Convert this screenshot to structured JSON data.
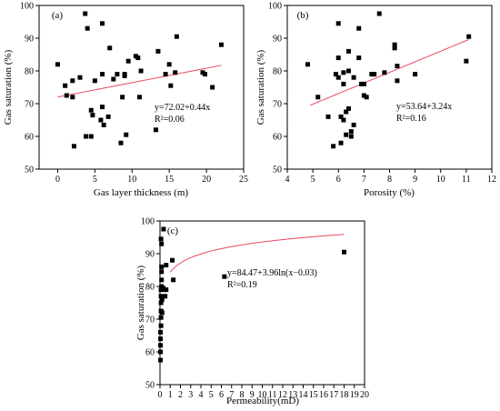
{
  "fit_color": "#e84a5f",
  "chart_data": [
    {
      "type": "scatter",
      "panel_label": "(a)",
      "xlabel": "Gas layer thickness (m)",
      "ylabel": "Gas saturation (%)",
      "xlim": [
        -2.5,
        25
      ],
      "ylim": [
        50,
        100
      ],
      "xticks": [
        0,
        5,
        10,
        15,
        20,
        25
      ],
      "yticks": [
        50,
        60,
        70,
        80,
        90,
        100
      ],
      "x_tick_labels": [
        "0",
        "5",
        "10",
        "15",
        "20",
        "25"
      ],
      "y_tick_labels": [
        "50",
        "60",
        "70",
        "80",
        "90",
        "100"
      ],
      "points": [
        {
          "x": 0.0,
          "y": 82.0
        },
        {
          "x": 1.0,
          "y": 75.5
        },
        {
          "x": 1.2,
          "y": 72.5
        },
        {
          "x": 2.0,
          "y": 72.0
        },
        {
          "x": 2.0,
          "y": 77.0
        },
        {
          "x": 2.2,
          "y": 57.0
        },
        {
          "x": 3.0,
          "y": 78.0
        },
        {
          "x": 3.7,
          "y": 97.5
        },
        {
          "x": 3.8,
          "y": 60.0
        },
        {
          "x": 4.0,
          "y": 93.0
        },
        {
          "x": 4.5,
          "y": 60.0
        },
        {
          "x": 4.5,
          "y": 68.0
        },
        {
          "x": 4.7,
          "y": 66.5
        },
        {
          "x": 5.0,
          "y": 77.0
        },
        {
          "x": 5.8,
          "y": 65.0
        },
        {
          "x": 6.0,
          "y": 94.5
        },
        {
          "x": 6.0,
          "y": 79.0
        },
        {
          "x": 6.0,
          "y": 69.0
        },
        {
          "x": 6.2,
          "y": 63.5
        },
        {
          "x": 6.8,
          "y": 66.0
        },
        {
          "x": 7.0,
          "y": 87.0
        },
        {
          "x": 7.5,
          "y": 77.5
        },
        {
          "x": 8.0,
          "y": 79.0
        },
        {
          "x": 8.5,
          "y": 58.0
        },
        {
          "x": 8.7,
          "y": 72.0
        },
        {
          "x": 9.0,
          "y": 79.0
        },
        {
          "x": 9.0,
          "y": 78.5
        },
        {
          "x": 9.2,
          "y": 60.5
        },
        {
          "x": 9.5,
          "y": 83.0
        },
        {
          "x": 10.5,
          "y": 84.5
        },
        {
          "x": 10.8,
          "y": 84.0
        },
        {
          "x": 11.0,
          "y": 72.0
        },
        {
          "x": 11.2,
          "y": 80.0
        },
        {
          "x": 13.2,
          "y": 62.0
        },
        {
          "x": 13.5,
          "y": 86.0
        },
        {
          "x": 14.5,
          "y": 79.0
        },
        {
          "x": 15.0,
          "y": 82.0
        },
        {
          "x": 15.2,
          "y": 75.5
        },
        {
          "x": 15.8,
          "y": 79.5
        },
        {
          "x": 16.0,
          "y": 90.5
        },
        {
          "x": 19.5,
          "y": 79.5
        },
        {
          "x": 19.8,
          "y": 79.0
        },
        {
          "x": 20.8,
          "y": 75.0
        },
        {
          "x": 22.0,
          "y": 88.0
        }
      ],
      "fit": {
        "kind": "linear",
        "intercept": 72.02,
        "slope": 0.44,
        "x_range": [
          0,
          22
        ]
      },
      "equation_text": "y=72.02+0.44x",
      "r2_text": "R²=0.06"
    },
    {
      "type": "scatter",
      "panel_label": "(b)",
      "xlabel": "Porosity (%)",
      "ylabel": "Gas saturation (%)",
      "xlim": [
        4,
        12
      ],
      "ylim": [
        50,
        100
      ],
      "xticks": [
        4,
        5,
        6,
        7,
        8,
        9,
        10,
        11,
        12
      ],
      "yticks": [
        50,
        60,
        70,
        80,
        90,
        100
      ],
      "x_tick_labels": [
        "4",
        "5",
        "6",
        "7",
        "8",
        "9",
        "10",
        "11",
        "12"
      ],
      "y_tick_labels": [
        "50",
        "60",
        "70",
        "80",
        "90",
        "100"
      ],
      "points": [
        {
          "x": 4.8,
          "y": 82.0
        },
        {
          "x": 5.2,
          "y": 72.0
        },
        {
          "x": 5.6,
          "y": 66.0
        },
        {
          "x": 5.8,
          "y": 57.0
        },
        {
          "x": 5.9,
          "y": 79.0
        },
        {
          "x": 6.0,
          "y": 94.5
        },
        {
          "x": 6.0,
          "y": 84.0
        },
        {
          "x": 6.0,
          "y": 78.0
        },
        {
          "x": 6.1,
          "y": 66.0
        },
        {
          "x": 6.1,
          "y": 58.0
        },
        {
          "x": 6.2,
          "y": 79.5
        },
        {
          "x": 6.2,
          "y": 76.0
        },
        {
          "x": 6.2,
          "y": 65.0
        },
        {
          "x": 6.3,
          "y": 60.5
        },
        {
          "x": 6.3,
          "y": 67.5
        },
        {
          "x": 6.4,
          "y": 86.0
        },
        {
          "x": 6.4,
          "y": 80.0
        },
        {
          "x": 6.4,
          "y": 68.5
        },
        {
          "x": 6.5,
          "y": 60.0
        },
        {
          "x": 6.5,
          "y": 61.5
        },
        {
          "x": 6.6,
          "y": 78.0
        },
        {
          "x": 6.6,
          "y": 63.5
        },
        {
          "x": 6.8,
          "y": 93.0
        },
        {
          "x": 6.8,
          "y": 84.0
        },
        {
          "x": 6.9,
          "y": 76.0
        },
        {
          "x": 7.0,
          "y": 76.0
        },
        {
          "x": 7.0,
          "y": 72.5
        },
        {
          "x": 7.1,
          "y": 72.0
        },
        {
          "x": 7.3,
          "y": 79.0
        },
        {
          "x": 7.4,
          "y": 79.0
        },
        {
          "x": 7.6,
          "y": 97.5
        },
        {
          "x": 7.8,
          "y": 79.5
        },
        {
          "x": 8.2,
          "y": 88.0
        },
        {
          "x": 8.2,
          "y": 87.0
        },
        {
          "x": 8.3,
          "y": 81.5
        },
        {
          "x": 8.3,
          "y": 77.0
        },
        {
          "x": 9.0,
          "y": 79.0
        },
        {
          "x": 11.0,
          "y": 83.0
        },
        {
          "x": 11.1,
          "y": 90.5
        }
      ],
      "fit": {
        "kind": "linear",
        "intercept": 53.64,
        "slope": 3.24,
        "x_range": [
          4.9,
          11.1
        ]
      },
      "equation_text": "y=53.64+3.24x",
      "r2_text": "R²=0.16"
    },
    {
      "type": "scatter",
      "panel_label": "(c)",
      "xlabel": "Permeability(mD)",
      "ylabel": "Gas saturation (%)",
      "xlim": [
        0,
        20
      ],
      "ylim": [
        50,
        100
      ],
      "xticks": [
        0,
        1,
        2,
        3,
        4,
        5,
        6,
        7,
        8,
        9,
        10,
        11,
        12,
        13,
        14,
        15,
        16,
        17,
        18,
        19,
        20
      ],
      "yticks": [
        50,
        60,
        70,
        80,
        90,
        100
      ],
      "x_tick_labels": [
        "0",
        "1",
        "2",
        "3",
        "4",
        "5",
        "6",
        "7",
        "8",
        "9",
        "10",
        "11",
        "12",
        "13",
        "14",
        "15",
        "16",
        "17",
        "18",
        "19",
        "20"
      ],
      "y_tick_labels": [
        "50",
        "60",
        "70",
        "80",
        "90",
        "100"
      ],
      "points": [
        {
          "x": 0.05,
          "y": 57.5
        },
        {
          "x": 0.05,
          "y": 60.0
        },
        {
          "x": 0.05,
          "y": 62.0
        },
        {
          "x": 0.05,
          "y": 64.0
        },
        {
          "x": 0.05,
          "y": 66.0
        },
        {
          "x": 0.1,
          "y": 68.0
        },
        {
          "x": 0.1,
          "y": 70.5
        },
        {
          "x": 0.1,
          "y": 72.5
        },
        {
          "x": 0.1,
          "y": 75.0
        },
        {
          "x": 0.1,
          "y": 77.0
        },
        {
          "x": 0.1,
          "y": 79.0
        },
        {
          "x": 0.15,
          "y": 80.0
        },
        {
          "x": 0.15,
          "y": 82.0
        },
        {
          "x": 0.15,
          "y": 84.5
        },
        {
          "x": 0.15,
          "y": 86.0
        },
        {
          "x": 0.15,
          "y": 93.0
        },
        {
          "x": 0.1,
          "y": 94.5
        },
        {
          "x": 0.2,
          "y": 76.0
        },
        {
          "x": 0.2,
          "y": 72.0
        },
        {
          "x": 0.3,
          "y": 79.5
        },
        {
          "x": 0.35,
          "y": 97.5
        },
        {
          "x": 0.4,
          "y": 79.0
        },
        {
          "x": 0.5,
          "y": 77.0
        },
        {
          "x": 0.6,
          "y": 79.0
        },
        {
          "x": 0.6,
          "y": 86.5
        },
        {
          "x": 1.2,
          "y": 88.0
        },
        {
          "x": 1.3,
          "y": 82.0
        },
        {
          "x": 6.3,
          "y": 83.0
        },
        {
          "x": 18.0,
          "y": 90.5
        }
      ],
      "fit": {
        "kind": "log",
        "a": 84.47,
        "b": 3.96,
        "shift": -0.03,
        "x_range": [
          1.0,
          18.0
        ]
      },
      "equation_text": "y=84.47+3.96ln(x−0.03)",
      "r2_text": "R²=0.19"
    }
  ]
}
